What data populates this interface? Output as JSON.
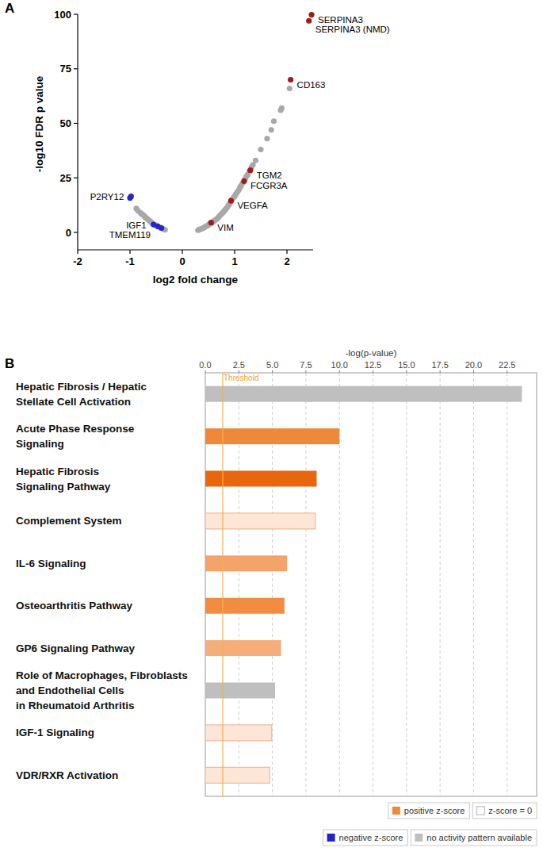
{
  "chart_data": [
    {
      "panel": "A",
      "type": "scatter",
      "marker": "circle",
      "x_label": "log2 fold change",
      "y_label": "-log10 FDR p value",
      "xlim": [
        -2,
        2.5
      ],
      "xticks": [
        -2,
        -1,
        0,
        1,
        2
      ],
      "ylim": [
        -8,
        100
      ],
      "yticks": [
        0,
        25,
        50,
        75,
        100
      ],
      "series": [
        {
          "color": "#a8a8a8",
          "x": [
            -0.88,
            -0.85,
            -0.8,
            -0.78,
            -0.75,
            -0.72,
            -0.7,
            -0.67,
            -0.65,
            -0.62,
            -0.6,
            -0.58,
            -0.5,
            -0.42,
            -0.36,
            -0.33,
            0.3,
            0.32,
            0.35,
            0.38,
            0.4,
            0.42,
            0.45,
            0.48,
            0.5,
            0.52,
            0.56,
            0.6,
            0.62,
            0.65,
            0.68,
            0.7,
            0.72,
            0.75,
            0.78,
            0.8,
            0.82,
            0.85,
            0.88,
            0.9,
            0.92,
            0.95,
            0.98,
            1.0,
            1.02,
            1.05,
            1.08,
            1.1,
            1.12,
            1.15,
            1.2,
            1.22,
            1.25,
            1.28,
            1.32,
            1.35,
            1.4,
            1.5,
            1.62,
            1.7,
            1.75,
            1.88,
            1.9,
            2.05
          ],
          "values": [
            11,
            10,
            9,
            8.5,
            8,
            7.3,
            6.8,
            6.2,
            5.8,
            5.2,
            4.8,
            4.3,
            3.2,
            2.3,
            1.5,
            1.2,
            1,
            1.2,
            1.5,
            1.8,
            2,
            2.3,
            2.8,
            3.1,
            3.5,
            3.8,
            4.3,
            5,
            5.5,
            6,
            6.6,
            7.2,
            7.8,
            8.5,
            9.2,
            9.8,
            10.4,
            11.2,
            12.3,
            13,
            13.8,
            15,
            16,
            16.5,
            17.4,
            18.5,
            19.5,
            20.5,
            21.3,
            22.5,
            24.5,
            25.5,
            26.5,
            28,
            29.8,
            31,
            33,
            38,
            43,
            47,
            51,
            56,
            57,
            66
          ]
        },
        {
          "color": "#2626c4",
          "x": [
            -0.98,
            -1.0,
            -0.55,
            -0.47,
            -0.4
          ],
          "values": [
            16.5,
            15.8,
            3.6,
            2.8,
            2.0
          ],
          "labels": [
            "P2RY12",
            null,
            "IGF1",
            "TMEM119",
            null
          ]
        },
        {
          "color": "#a31a1a",
          "x": [
            0.55,
            0.93,
            1.18,
            1.3,
            2.07,
            2.42,
            2.47
          ],
          "values": [
            4.5,
            14.5,
            23.5,
            28.5,
            70,
            97,
            99.8
          ],
          "labels": [
            "VIM",
            "VEGFA",
            "FCGR3A",
            "TGM2",
            "CD163",
            "SERPINA3 (NMD)",
            "SERPINA3"
          ]
        }
      ]
    },
    {
      "panel": "B",
      "type": "bar",
      "orientation": "horizontal",
      "grid": true,
      "x_label": "-log(p-value)",
      "xlim": [
        0,
        24.7
      ],
      "xticks": [
        {
          "value": 0,
          "label": "0.0"
        },
        2.5,
        {
          "value": 5,
          "label": "5.0"
        },
        7.5,
        {
          "value": 10,
          "label": "10.0"
        },
        12.5,
        {
          "value": 15,
          "label": "15.0"
        },
        17.5,
        {
          "value": 20,
          "label": "20.0"
        },
        22.5
      ],
      "categories": [
        "Hepatic Fibrosis / Hepatic\nStellate Cell Activation",
        "Acute Phase Response\nSignaling",
        "Hepatic Fibrosis\nSignaling Pathway",
        "Complement System",
        "IL-6 Signaling",
        "Osteoarthritis Pathway",
        "GP6 Signaling Pathway",
        "Role of Macrophages, Fibroblasts\nand Endothelial Cells\nin Rheumatoid Arthritis",
        "IGF-1 Signaling",
        "VDR/RXR Activation"
      ],
      "values": [
        23.6,
        10.0,
        8.3,
        8.2,
        6.1,
        5.9,
        5.65,
        5.2,
        4.95,
        4.8
      ],
      "colors": [
        "#bfbfbf",
        "#f0883a",
        "#e8670e",
        "#fde6d6",
        "#f4a36a",
        "#f08d43",
        "#f5ae7a",
        "#bfbfbf",
        "#fde6d6",
        "#fde6d6"
      ],
      "threshold": {
        "value": 1.3,
        "label": "Threshold"
      },
      "legend": "bottom-right",
      "legend_items": [
        {
          "name": "positive z-score",
          "color": "#f0883a"
        },
        {
          "name": "z-score = 0",
          "color": "#ffffff"
        },
        {
          "name": "negative z-score",
          "color": "#2222cc"
        },
        {
          "name": "no activity pattern available",
          "color": "#bfbfbf"
        }
      ]
    }
  ]
}
